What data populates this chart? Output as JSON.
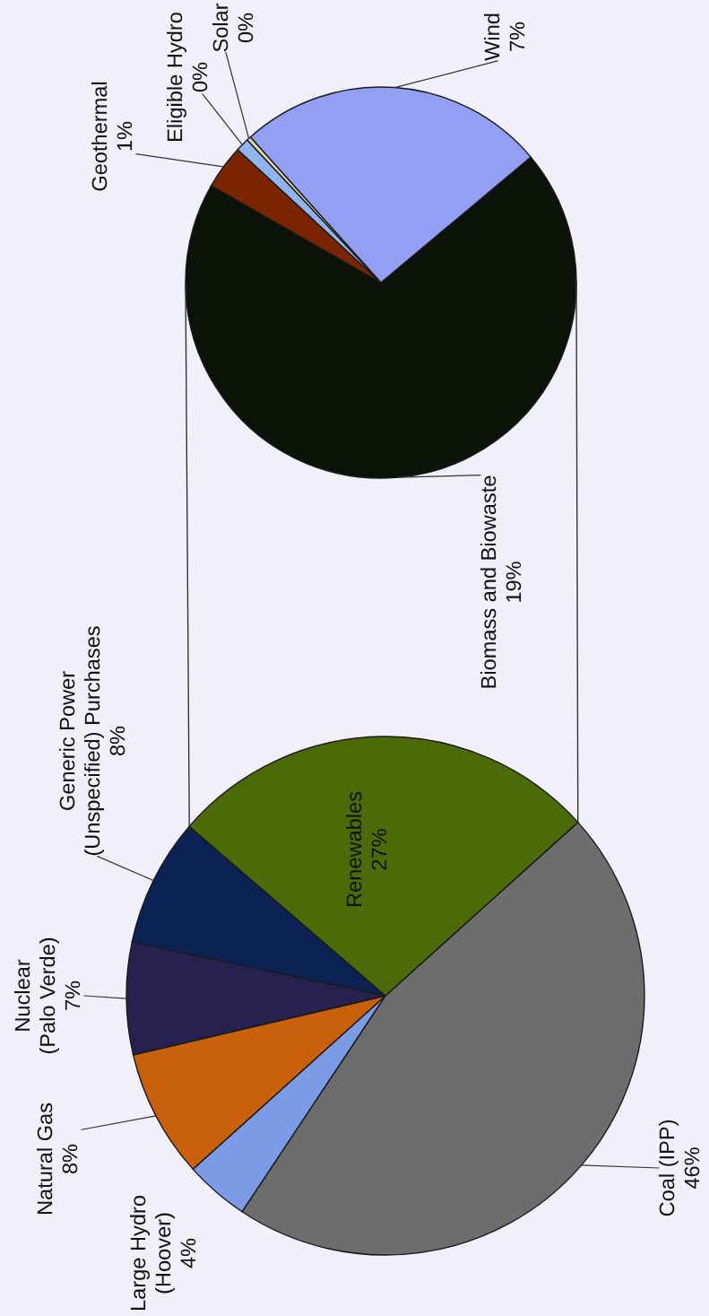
{
  "chart_data": [
    {
      "type": "pie",
      "categories": [
        "Coal (IPP)",
        "Large Hydro (Hoover)",
        "Natural Gas",
        "Nuclear (Palo Verde)",
        "Generic Power (Unspecified) Purchases",
        "Renewables"
      ],
      "values": [
        46,
        4,
        8,
        7,
        8,
        27
      ],
      "value_labels": [
        "46%",
        "4%",
        "8%",
        "7%",
        "8%",
        "27%"
      ],
      "colors": [
        "#6d6d6d",
        "#7c9be6",
        "#c8600c",
        "#26214f",
        "#0c2252",
        "#4b6b08"
      ]
    },
    {
      "type": "pie",
      "categories": [
        "Biomass and Biowaste",
        "Geothermal",
        "Eligible Hydro",
        "Solar",
        "Wind"
      ],
      "values": [
        19,
        1,
        0.3,
        0.1,
        7
      ],
      "value_labels": [
        "19%",
        "1%",
        "0%",
        "0%",
        "7%"
      ],
      "colors": [
        "#0d1208",
        "#7a2500",
        "#90b4ee",
        "#d8d8a8",
        "#929ff2"
      ]
    }
  ]
}
